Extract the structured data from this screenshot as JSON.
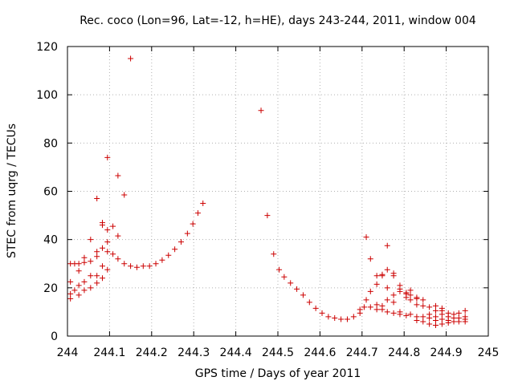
{
  "chart_data": {
    "type": "scatter",
    "title": "Rec. coco (Lon=96, Lat=-12, h=HE), days 243-244, 2011, window 004",
    "xlabel": "GPS time / Days of year 2011",
    "ylabel": "STEC from uqrg / TECUs",
    "xlim": [
      244,
      245
    ],
    "ylim": [
      0,
      120
    ],
    "xticks": [
      "244",
      "244.1",
      "244.2",
      "244.3",
      "244.4",
      "244.5",
      "244.6",
      "244.7",
      "244.8",
      "244.9",
      "245"
    ],
    "yticks": [
      "0",
      "20",
      "40",
      "60",
      "80",
      "100",
      "120"
    ],
    "grid": true,
    "marker": "plus",
    "color": "#cc0000",
    "points": [
      [
        244.007,
        15.5
      ],
      [
        244.007,
        17.5
      ],
      [
        244.007,
        22.5
      ],
      [
        244.007,
        30
      ],
      [
        244.017,
        19
      ],
      [
        244.017,
        30
      ],
      [
        244.027,
        17
      ],
      [
        244.027,
        21
      ],
      [
        244.027,
        27
      ],
      [
        244.027,
        30
      ],
      [
        244.04,
        19
      ],
      [
        244.04,
        22.5
      ],
      [
        244.04,
        30.5
      ],
      [
        244.04,
        32.5
      ],
      [
        244.055,
        20
      ],
      [
        244.055,
        25
      ],
      [
        244.055,
        31
      ],
      [
        244.055,
        40
      ],
      [
        244.07,
        22
      ],
      [
        244.07,
        25
      ],
      [
        244.07,
        33
      ],
      [
        244.07,
        35
      ],
      [
        244.07,
        57
      ],
      [
        244.083,
        24
      ],
      [
        244.083,
        29
      ],
      [
        244.083,
        36.5
      ],
      [
        244.083,
        46
      ],
      [
        244.083,
        47
      ],
      [
        244.095,
        27.5
      ],
      [
        244.095,
        35
      ],
      [
        244.095,
        39
      ],
      [
        244.095,
        44
      ],
      [
        244.095,
        74
      ],
      [
        244.108,
        34
      ],
      [
        244.108,
        45.5
      ],
      [
        244.12,
        32
      ],
      [
        244.12,
        41.5
      ],
      [
        244.12,
        66.5
      ],
      [
        244.135,
        30
      ],
      [
        244.135,
        58.5
      ],
      [
        244.15,
        29
      ],
      [
        244.15,
        115
      ],
      [
        244.165,
        28.5
      ],
      [
        244.18,
        29
      ],
      [
        244.195,
        29
      ],
      [
        244.21,
        30
      ],
      [
        244.225,
        31.5
      ],
      [
        244.24,
        33.5
      ],
      [
        244.255,
        36
      ],
      [
        244.27,
        39
      ],
      [
        244.285,
        42.5
      ],
      [
        244.298,
        46.5
      ],
      [
        244.31,
        51
      ],
      [
        244.322,
        55
      ],
      [
        244.46,
        93.5
      ],
      [
        244.475,
        50
      ],
      [
        244.49,
        34
      ],
      [
        244.503,
        27.5
      ],
      [
        244.515,
        24.5
      ],
      [
        244.53,
        22
      ],
      [
        244.545,
        19.5
      ],
      [
        244.56,
        17
      ],
      [
        244.575,
        14
      ],
      [
        244.59,
        11.5
      ],
      [
        244.605,
        9.5
      ],
      [
        244.62,
        8
      ],
      [
        244.635,
        7.5
      ],
      [
        244.65,
        7
      ],
      [
        244.665,
        7
      ],
      [
        244.68,
        8
      ],
      [
        244.695,
        9.5
      ],
      [
        244.695,
        11
      ],
      [
        244.705,
        12
      ],
      [
        244.71,
        15
      ],
      [
        244.71,
        41
      ],
      [
        244.72,
        12
      ],
      [
        244.72,
        18.5
      ],
      [
        244.72,
        32
      ],
      [
        244.735,
        11
      ],
      [
        244.735,
        13
      ],
      [
        244.735,
        21.5
      ],
      [
        244.735,
        25
      ],
      [
        244.748,
        11
      ],
      [
        244.748,
        12.5
      ],
      [
        244.748,
        25
      ],
      [
        244.748,
        25.5
      ],
      [
        244.76,
        10
      ],
      [
        244.76,
        15
      ],
      [
        244.76,
        20
      ],
      [
        244.76,
        27.5
      ],
      [
        244.76,
        37.5
      ],
      [
        244.775,
        9.5
      ],
      [
        244.775,
        14
      ],
      [
        244.775,
        17
      ],
      [
        244.775,
        25
      ],
      [
        244.775,
        26
      ],
      [
        244.79,
        9
      ],
      [
        244.79,
        10
      ],
      [
        244.79,
        18.5
      ],
      [
        244.79,
        19.5
      ],
      [
        244.79,
        21
      ],
      [
        244.805,
        8.5
      ],
      [
        244.805,
        16
      ],
      [
        244.805,
        17.5
      ],
      [
        244.805,
        18
      ],
      [
        244.815,
        9
      ],
      [
        244.815,
        15
      ],
      [
        244.815,
        17
      ],
      [
        244.815,
        19
      ],
      [
        244.83,
        6.5
      ],
      [
        244.83,
        8
      ],
      [
        244.83,
        13
      ],
      [
        244.83,
        15.5
      ],
      [
        244.83,
        16
      ],
      [
        244.845,
        6
      ],
      [
        244.845,
        8
      ],
      [
        244.845,
        12.5
      ],
      [
        244.845,
        15
      ],
      [
        244.86,
        5
      ],
      [
        244.86,
        7.5
      ],
      [
        244.86,
        9
      ],
      [
        244.86,
        12
      ],
      [
        244.875,
        4.5
      ],
      [
        244.875,
        6.5
      ],
      [
        244.875,
        8
      ],
      [
        244.875,
        10.5
      ],
      [
        244.875,
        12.5
      ],
      [
        244.89,
        5
      ],
      [
        244.89,
        7
      ],
      [
        244.89,
        9
      ],
      [
        244.89,
        10.5
      ],
      [
        244.89,
        11.5
      ],
      [
        244.905,
        5.5
      ],
      [
        244.905,
        6.5
      ],
      [
        244.905,
        8
      ],
      [
        244.905,
        9.5
      ],
      [
        244.918,
        6
      ],
      [
        244.918,
        7.5
      ],
      [
        244.918,
        9
      ],
      [
        244.93,
        6
      ],
      [
        244.93,
        7.5
      ],
      [
        244.93,
        9.5
      ],
      [
        244.945,
        6
      ],
      [
        244.945,
        7
      ],
      [
        244.945,
        8
      ],
      [
        244.945,
        10.5
      ]
    ]
  }
}
